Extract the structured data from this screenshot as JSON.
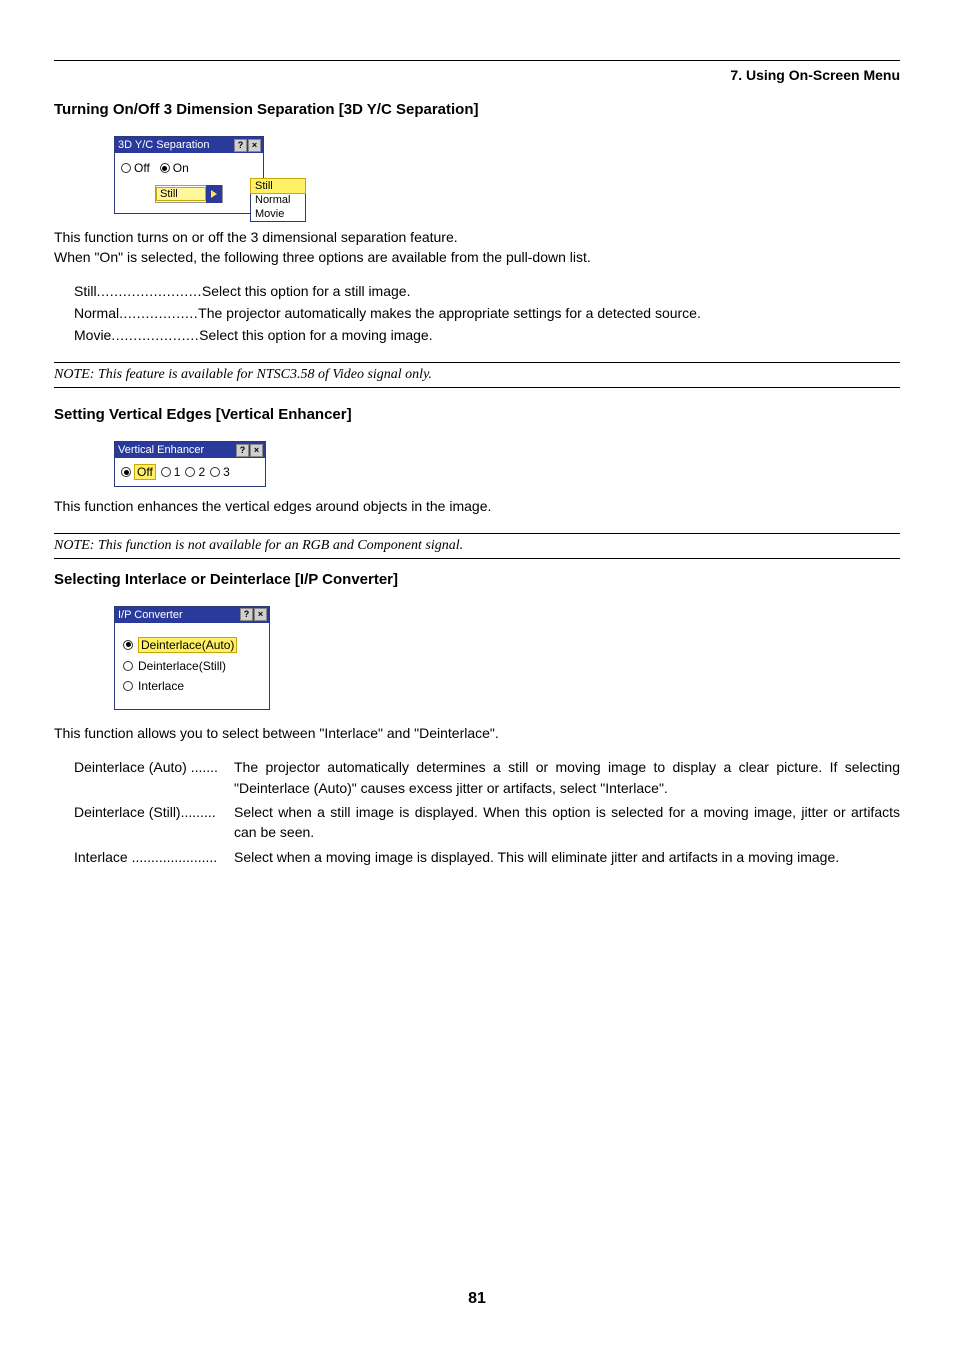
{
  "header": {
    "chapter": "7. Using On-Screen Menu"
  },
  "sec1": {
    "heading": "Turning On/Off 3 Dimension Separation [3D Y/C Separation]",
    "dialog": {
      "title": "3D Y/C Separation",
      "radios": {
        "off": "Off",
        "on": "On"
      },
      "select_value": "Still",
      "popup": {
        "opt1": "Still",
        "opt2": "Normal",
        "opt3": "Movie"
      }
    },
    "para1": "This function turns on or off the 3 dimensional separation feature.",
    "para2": "When \"On\" is selected, the following three options are available from the pull-down list.",
    "items": {
      "r1": {
        "term": "Still",
        "dots": "........................",
        "def": "Select this option for a still image."
      },
      "r2": {
        "term": "Normal",
        "dots": "..................",
        "def": "The projector automatically makes the appropriate settings for a detected source."
      },
      "r3": {
        "term": "Movie",
        "dots": "....................",
        "def": "Select this option for a moving image."
      }
    },
    "note": "NOTE: This feature is available for NTSC3.58 of Video signal only."
  },
  "sec2": {
    "heading": "Setting Vertical Edges [Vertical Enhancer]",
    "dialog": {
      "title": "Vertical Enhancer",
      "radios": {
        "off": "Off",
        "v1": "1",
        "v2": "2",
        "v3": "3"
      }
    },
    "para": "This function enhances the vertical edges around objects in the image.",
    "note": "NOTE: This function is not available for an RGB and Component signal."
  },
  "sec3": {
    "heading": "Selecting Interlace or Deinterlace [I/P Converter]",
    "dialog": {
      "title": "I/P Converter",
      "opts": {
        "o1": "Deinterlace(Auto)",
        "o2": "Deinterlace(Still)",
        "o3": "Interlace"
      }
    },
    "para": "This function allows you to select between \"Interlace\" and \"Deinterlace\".",
    "items": {
      "r1": {
        "term": "Deinterlace (Auto) .......",
        "def": "The projector automatically determines a still or moving image to display a clear picture. If selecting \"Deinterlace (Auto)\" causes excess jitter or artifacts, select \"Interlace\"."
      },
      "r2": {
        "term": "Deinterlace (Still).........",
        "def": "Select when a still image is displayed. When this option is selected for a moving image, jitter or artifacts can be seen."
      },
      "r3": {
        "term": "Interlace ......................",
        "def": "Select when a moving image is displayed. This will eliminate jitter and artifacts in a moving image."
      }
    }
  },
  "page_number": "81",
  "colors": {
    "dialog_title_bg": "#2a3a9c",
    "highlight_bg": "#fff066",
    "highlight_border": "#c9a800"
  }
}
